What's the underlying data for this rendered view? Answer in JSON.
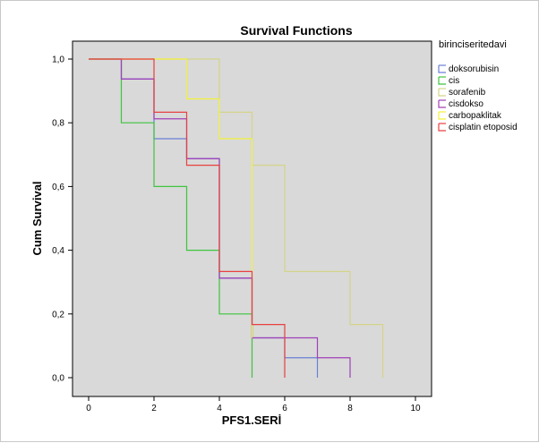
{
  "chart_data": {
    "type": "line",
    "step": true,
    "title": "Survival Functions",
    "xlabel": "PFS1.SERİ",
    "ylabel": "Cum Survival",
    "xlim": [
      0,
      10
    ],
    "ylim": [
      0,
      1
    ],
    "x_ticks": [
      "0",
      "2",
      "4",
      "6",
      "8",
      "10"
    ],
    "y_ticks": [
      "0,0",
      "0,2",
      "0,4",
      "0,6",
      "0,8",
      "1,0"
    ],
    "grid": false,
    "plot_background": "#d9d9d9",
    "legend": {
      "title": "birinciseritedavi",
      "placement": "right"
    },
    "series": [
      {
        "name": "doksorubisin",
        "color": "#6b7fd6",
        "points": [
          [
            0,
            1.0
          ],
          [
            1,
            0.9375
          ],
          [
            2,
            0.75
          ],
          [
            3,
            0.6875
          ],
          [
            4,
            0.3125
          ],
          [
            5,
            0.125
          ],
          [
            6,
            0.0625
          ],
          [
            7,
            0.0625
          ],
          [
            7,
            0.0
          ]
        ]
      },
      {
        "name": "cis",
        "color": "#3ec43e",
        "points": [
          [
            0,
            1.0
          ],
          [
            1,
            0.8
          ],
          [
            2,
            0.6
          ],
          [
            3,
            0.4
          ],
          [
            4,
            0.2
          ],
          [
            5,
            0.0
          ],
          [
            5,
            0.0
          ]
        ]
      },
      {
        "name": "sorafenib",
        "color": "#d4d48a",
        "points": [
          [
            0,
            1.0
          ],
          [
            3,
            1.0
          ],
          [
            4,
            0.8333
          ],
          [
            5,
            0.6667
          ],
          [
            6,
            0.3333
          ],
          [
            8,
            0.1667
          ],
          [
            9,
            0.0
          ],
          [
            9,
            0.0
          ]
        ]
      },
      {
        "name": "cisdokso",
        "color": "#a040b8",
        "points": [
          [
            0,
            1.0
          ],
          [
            1,
            0.9375
          ],
          [
            2,
            0.8125
          ],
          [
            3,
            0.6875
          ],
          [
            4,
            0.3125
          ],
          [
            5,
            0.125
          ],
          [
            6,
            0.125
          ],
          [
            7,
            0.0625
          ],
          [
            8,
            0.0
          ],
          [
            8,
            0.0
          ]
        ]
      },
      {
        "name": "carbopaklitak",
        "color": "#f2f23a",
        "points": [
          [
            0,
            1.0
          ],
          [
            3,
            0.875
          ],
          [
            4,
            0.75
          ],
          [
            5,
            0.125
          ],
          [
            5,
            0.125
          ]
        ]
      },
      {
        "name": "cisplatin etoposid",
        "color": "#e84040",
        "points": [
          [
            0,
            1.0
          ],
          [
            2,
            0.8333
          ],
          [
            3,
            0.6667
          ],
          [
            4,
            0.3333
          ],
          [
            5,
            0.1667
          ],
          [
            6,
            0.0
          ],
          [
            6,
            0.0
          ]
        ]
      }
    ]
  }
}
